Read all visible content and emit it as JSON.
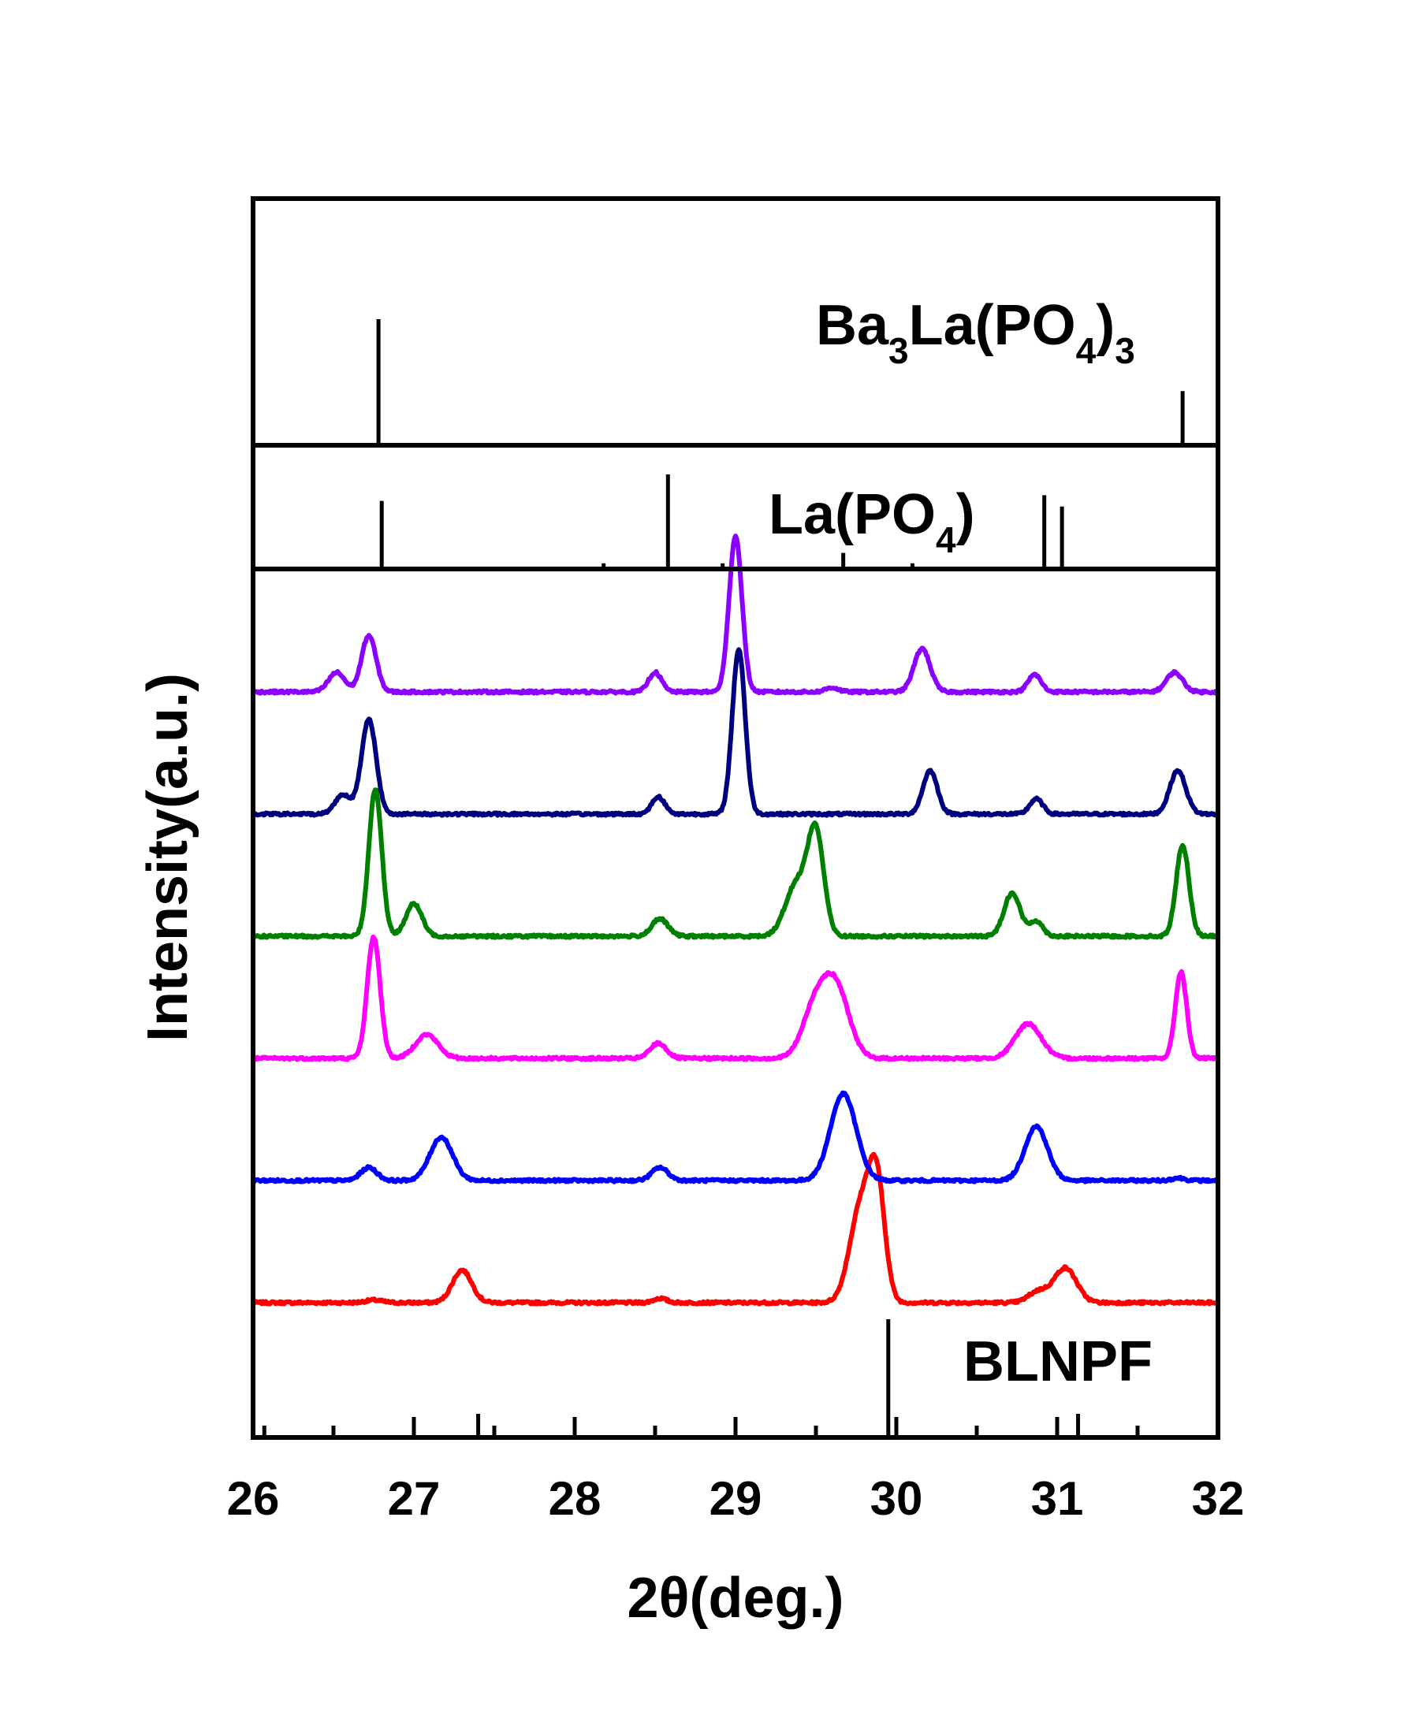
{
  "chart_data": {
    "type": "line",
    "xlabel": "2θ(deg.)",
    "ylabel": "Intensity(a.u.)",
    "xlim": [
      26,
      32
    ],
    "xticks": [
      "26",
      "27",
      "28",
      "29",
      "30",
      "31",
      "32"
    ],
    "reference_panels": [
      {
        "label_main": "Ba",
        "label_sub1": "3",
        "label_mid": "La(PO",
        "label_sub2": "4",
        "label_close": ")",
        "label_sub3": "3",
        "peaks": [
          {
            "x": 26.78,
            "rel": 1.0
          },
          {
            "x": 31.78,
            "rel": 0.43
          }
        ]
      },
      {
        "label_main": "La(PO",
        "label_sub": "4",
        "label_close": ")",
        "peaks": [
          {
            "x": 26.8,
            "rel": 0.72
          },
          {
            "x": 28.18,
            "rel": 0.06
          },
          {
            "x": 28.58,
            "rel": 1.0
          },
          {
            "x": 28.92,
            "rel": 0.06
          },
          {
            "x": 29.67,
            "rel": 0.17
          },
          {
            "x": 30.1,
            "rel": 0.06
          },
          {
            "x": 30.92,
            "rel": 0.78
          },
          {
            "x": 31.03,
            "rel": 0.66
          }
        ]
      },
      {
        "label": "BLNPF",
        "peaks": [
          {
            "x": 26.07,
            "rel": 0.1
          },
          {
            "x": 27.4,
            "rel": 0.2
          },
          {
            "x": 29.95,
            "rel": 1.0
          },
          {
            "x": 31.13,
            "rel": 0.2
          }
        ]
      }
    ],
    "series": [
      {
        "color": "#ff0000",
        "baseline": 0.0,
        "peaks": [
          {
            "x": 26.75,
            "h": 0.06,
            "w": 0.05
          },
          {
            "x": 27.3,
            "h": 0.75,
            "w": 0.06
          },
          {
            "x": 28.53,
            "h": 0.1,
            "w": 0.04
          },
          {
            "x": 29.78,
            "h": 2.2,
            "w": 0.07
          },
          {
            "x": 29.88,
            "h": 2.45,
            "w": 0.05
          },
          {
            "x": 30.88,
            "h": 0.25,
            "w": 0.06
          },
          {
            "x": 31.05,
            "h": 0.8,
            "w": 0.07
          }
        ]
      },
      {
        "color": "#0000ff",
        "baseline": 1.0,
        "peaks": [
          {
            "x": 26.72,
            "h": 0.3,
            "w": 0.05
          },
          {
            "x": 27.17,
            "h": 1.0,
            "w": 0.07
          },
          {
            "x": 28.53,
            "h": 0.3,
            "w": 0.05
          },
          {
            "x": 29.67,
            "h": 2.0,
            "w": 0.08
          },
          {
            "x": 30.87,
            "h": 1.25,
            "w": 0.07
          },
          {
            "x": 31.75,
            "h": 0.06,
            "w": 0.04
          }
        ]
      },
      {
        "color": "#ff00ff",
        "baseline": 2.0,
        "peaks": [
          {
            "x": 26.75,
            "h": 2.8,
            "w": 0.04
          },
          {
            "x": 27.08,
            "h": 0.55,
            "w": 0.07
          },
          {
            "x": 28.52,
            "h": 0.35,
            "w": 0.05
          },
          {
            "x": 29.5,
            "h": 1.2,
            "w": 0.08
          },
          {
            "x": 29.63,
            "h": 1.5,
            "w": 0.08
          },
          {
            "x": 30.82,
            "h": 0.8,
            "w": 0.08
          },
          {
            "x": 31.77,
            "h": 2.0,
            "w": 0.035
          }
        ]
      },
      {
        "color": "#008000",
        "baseline": 3.0,
        "peaks": [
          {
            "x": 26.76,
            "h": 3.4,
            "w": 0.04
          },
          {
            "x": 27.0,
            "h": 0.75,
            "w": 0.05
          },
          {
            "x": 28.53,
            "h": 0.4,
            "w": 0.05
          },
          {
            "x": 29.38,
            "h": 1.2,
            "w": 0.07
          },
          {
            "x": 29.5,
            "h": 2.3,
            "w": 0.05
          },
          {
            "x": 30.72,
            "h": 1.0,
            "w": 0.05
          },
          {
            "x": 30.87,
            "h": 0.35,
            "w": 0.04
          },
          {
            "x": 31.78,
            "h": 2.1,
            "w": 0.04
          }
        ]
      },
      {
        "color": "#00007f",
        "baseline": 4.0,
        "peaks": [
          {
            "x": 26.56,
            "h": 0.45,
            "w": 0.05
          },
          {
            "x": 26.72,
            "h": 2.2,
            "w": 0.045
          },
          {
            "x": 28.52,
            "h": 0.4,
            "w": 0.04
          },
          {
            "x": 29.02,
            "h": 3.8,
            "w": 0.04
          },
          {
            "x": 30.21,
            "h": 1.0,
            "w": 0.045
          },
          {
            "x": 30.87,
            "h": 0.35,
            "w": 0.04
          },
          {
            "x": 31.75,
            "h": 1.0,
            "w": 0.05
          }
        ]
      },
      {
        "color": "#8b00ff",
        "baseline": 5.0,
        "peaks": [
          {
            "x": 26.52,
            "h": 0.45,
            "w": 0.05
          },
          {
            "x": 26.72,
            "h": 1.3,
            "w": 0.045
          },
          {
            "x": 28.5,
            "h": 0.45,
            "w": 0.04
          },
          {
            "x": 29.0,
            "h": 3.6,
            "w": 0.04
          },
          {
            "x": 29.6,
            "h": 0.1,
            "w": 0.04
          },
          {
            "x": 30.16,
            "h": 1.0,
            "w": 0.05
          },
          {
            "x": 30.86,
            "h": 0.4,
            "w": 0.04
          },
          {
            "x": 31.73,
            "h": 0.45,
            "w": 0.05
          }
        ]
      }
    ]
  }
}
